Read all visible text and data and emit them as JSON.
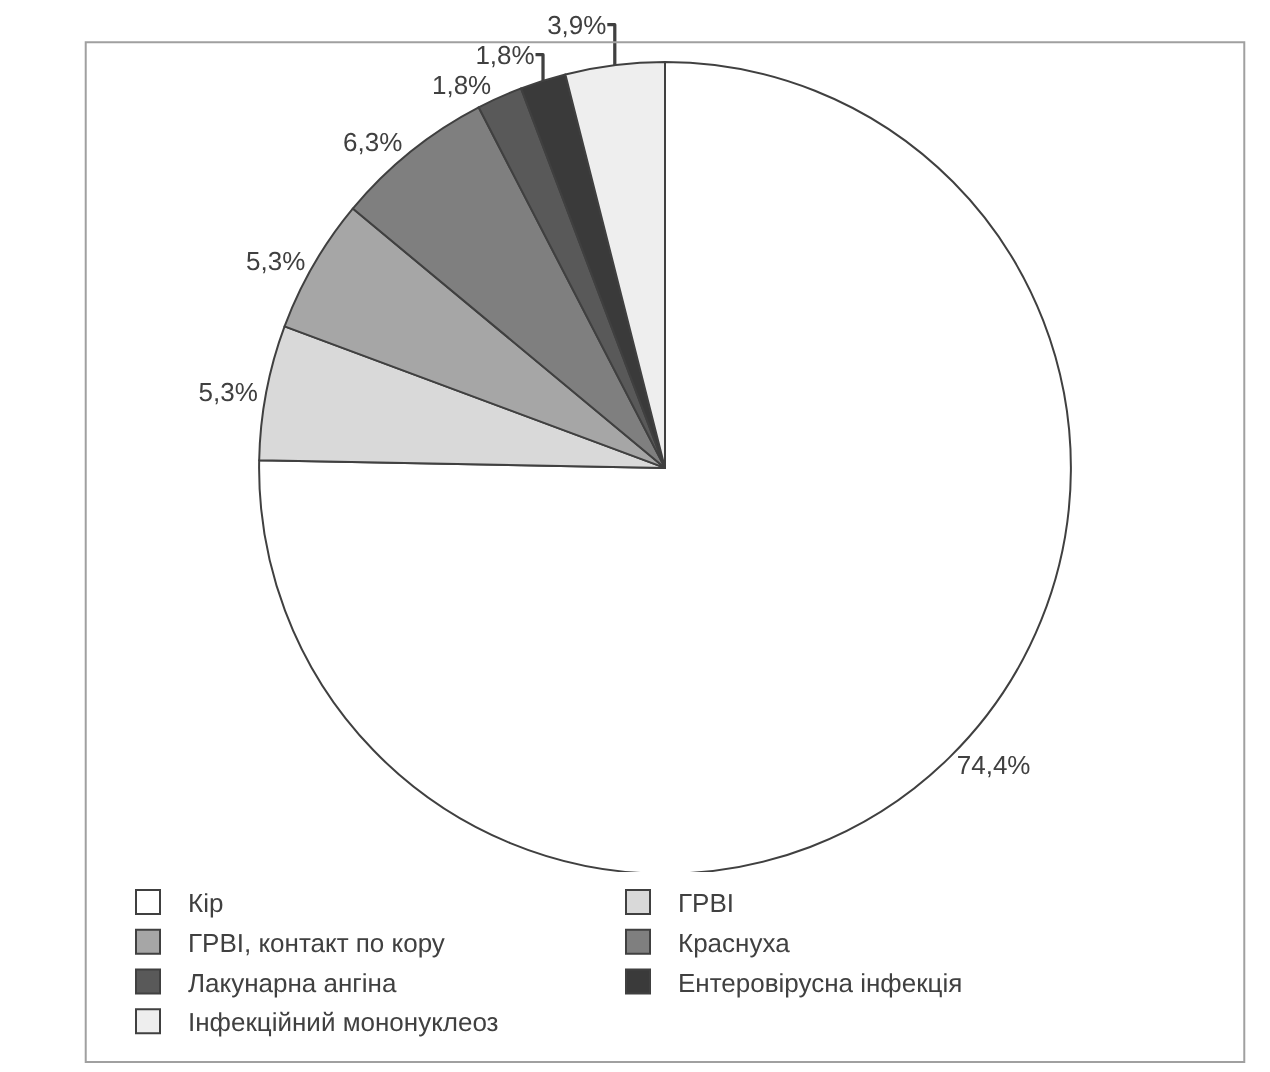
{
  "chart_data": {
    "type": "pie",
    "categories": [
      "Кір",
      "ГРВІ",
      "ГРВІ, контакт по кору",
      "Краснуха",
      "Лакунарна ангіна",
      "Ентеровірусна інфекція",
      "Інфекційний мононуклеоз"
    ],
    "values": [
      74.4,
      5.3,
      5.3,
      6.3,
      1.8,
      1.8,
      3.9
    ],
    "value_labels": [
      "74,4%",
      "5,3%",
      "5,3%",
      "6,3%",
      "1,8%",
      "1,8%",
      "3,9%"
    ],
    "colors": [
      "#ffffff",
      "#d9d9d9",
      "#a6a6a6",
      "#7f7f7f",
      "#595959",
      "#3a3a3a",
      "#eeeeee"
    ],
    "legend": "bottom"
  }
}
